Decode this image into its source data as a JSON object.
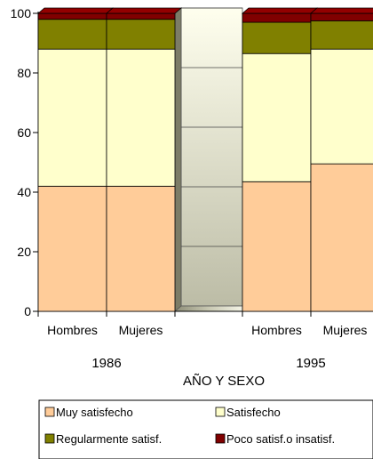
{
  "chart_data": {
    "type": "bar",
    "stacked": true,
    "three_d": true,
    "categories": [
      "Hombres",
      "Mujeres",
      "Hombres",
      "Mujeres"
    ],
    "groups": [
      "1986",
      "1995"
    ],
    "xlabel": "AÑO Y SEXO",
    "ylabel": "",
    "ylim": [
      0,
      100
    ],
    "yticks": [
      0,
      20,
      40,
      60,
      80,
      100
    ],
    "legend_position": "bottom",
    "series": [
      {
        "name": "Muy satisfecho",
        "color": "#ffcc99",
        "values": [
          42,
          42,
          43.5,
          49.5
        ]
      },
      {
        "name": "Satisfecho",
        "color": "#ffffcc",
        "values": [
          46,
          46,
          43,
          38.5
        ]
      },
      {
        "name": "Regularmente satisf.",
        "color": "#808000",
        "values": [
          10,
          10,
          10.5,
          9.5
        ]
      },
      {
        "name": "Poco satisf.o insatisf.",
        "color": "#800000",
        "values": [
          2,
          2,
          3,
          2.5
        ]
      }
    ]
  }
}
